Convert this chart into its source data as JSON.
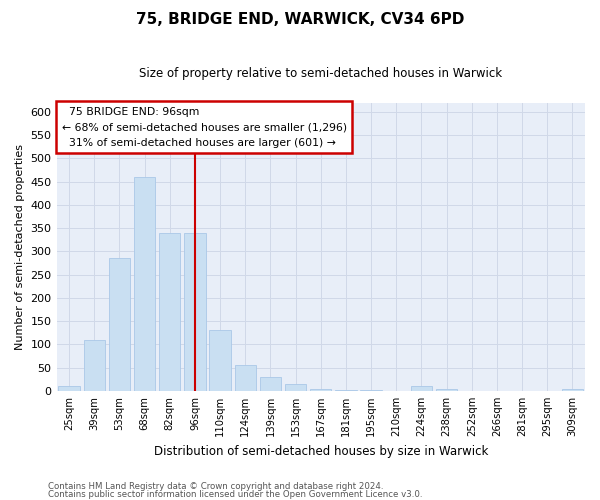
{
  "title": "75, BRIDGE END, WARWICK, CV34 6PD",
  "subtitle": "Size of property relative to semi-detached houses in Warwick",
  "xlabel": "Distribution of semi-detached houses by size in Warwick",
  "ylabel": "Number of semi-detached properties",
  "footnote1": "Contains HM Land Registry data © Crown copyright and database right 2024.",
  "footnote2": "Contains public sector information licensed under the Open Government Licence v3.0.",
  "annotation_title": "75 BRIDGE END: 96sqm",
  "annotation_line1": "← 68% of semi-detached houses are smaller (1,296)",
  "annotation_line2": "31% of semi-detached houses are larger (601) →",
  "bar_color": "#c9dff2",
  "bar_edge_color": "#aac8e8",
  "vline_color": "#cc0000",
  "annotation_box_edgecolor": "#cc0000",
  "categories": [
    "25sqm",
    "39sqm",
    "53sqm",
    "68sqm",
    "82sqm",
    "96sqm",
    "110sqm",
    "124sqm",
    "139sqm",
    "153sqm",
    "167sqm",
    "181sqm",
    "195sqm",
    "210sqm",
    "224sqm",
    "238sqm",
    "252sqm",
    "266sqm",
    "281sqm",
    "295sqm",
    "309sqm"
  ],
  "values": [
    10,
    110,
    285,
    460,
    340,
    340,
    130,
    55,
    30,
    15,
    5,
    3,
    2,
    0,
    10,
    5,
    0,
    0,
    0,
    0,
    5
  ],
  "vline_idx": 5,
  "ylim": [
    0,
    620
  ],
  "yticks": [
    0,
    50,
    100,
    150,
    200,
    250,
    300,
    350,
    400,
    450,
    500,
    550,
    600
  ],
  "grid_color": "#d0d8e8",
  "background_color": "#e8eef8"
}
